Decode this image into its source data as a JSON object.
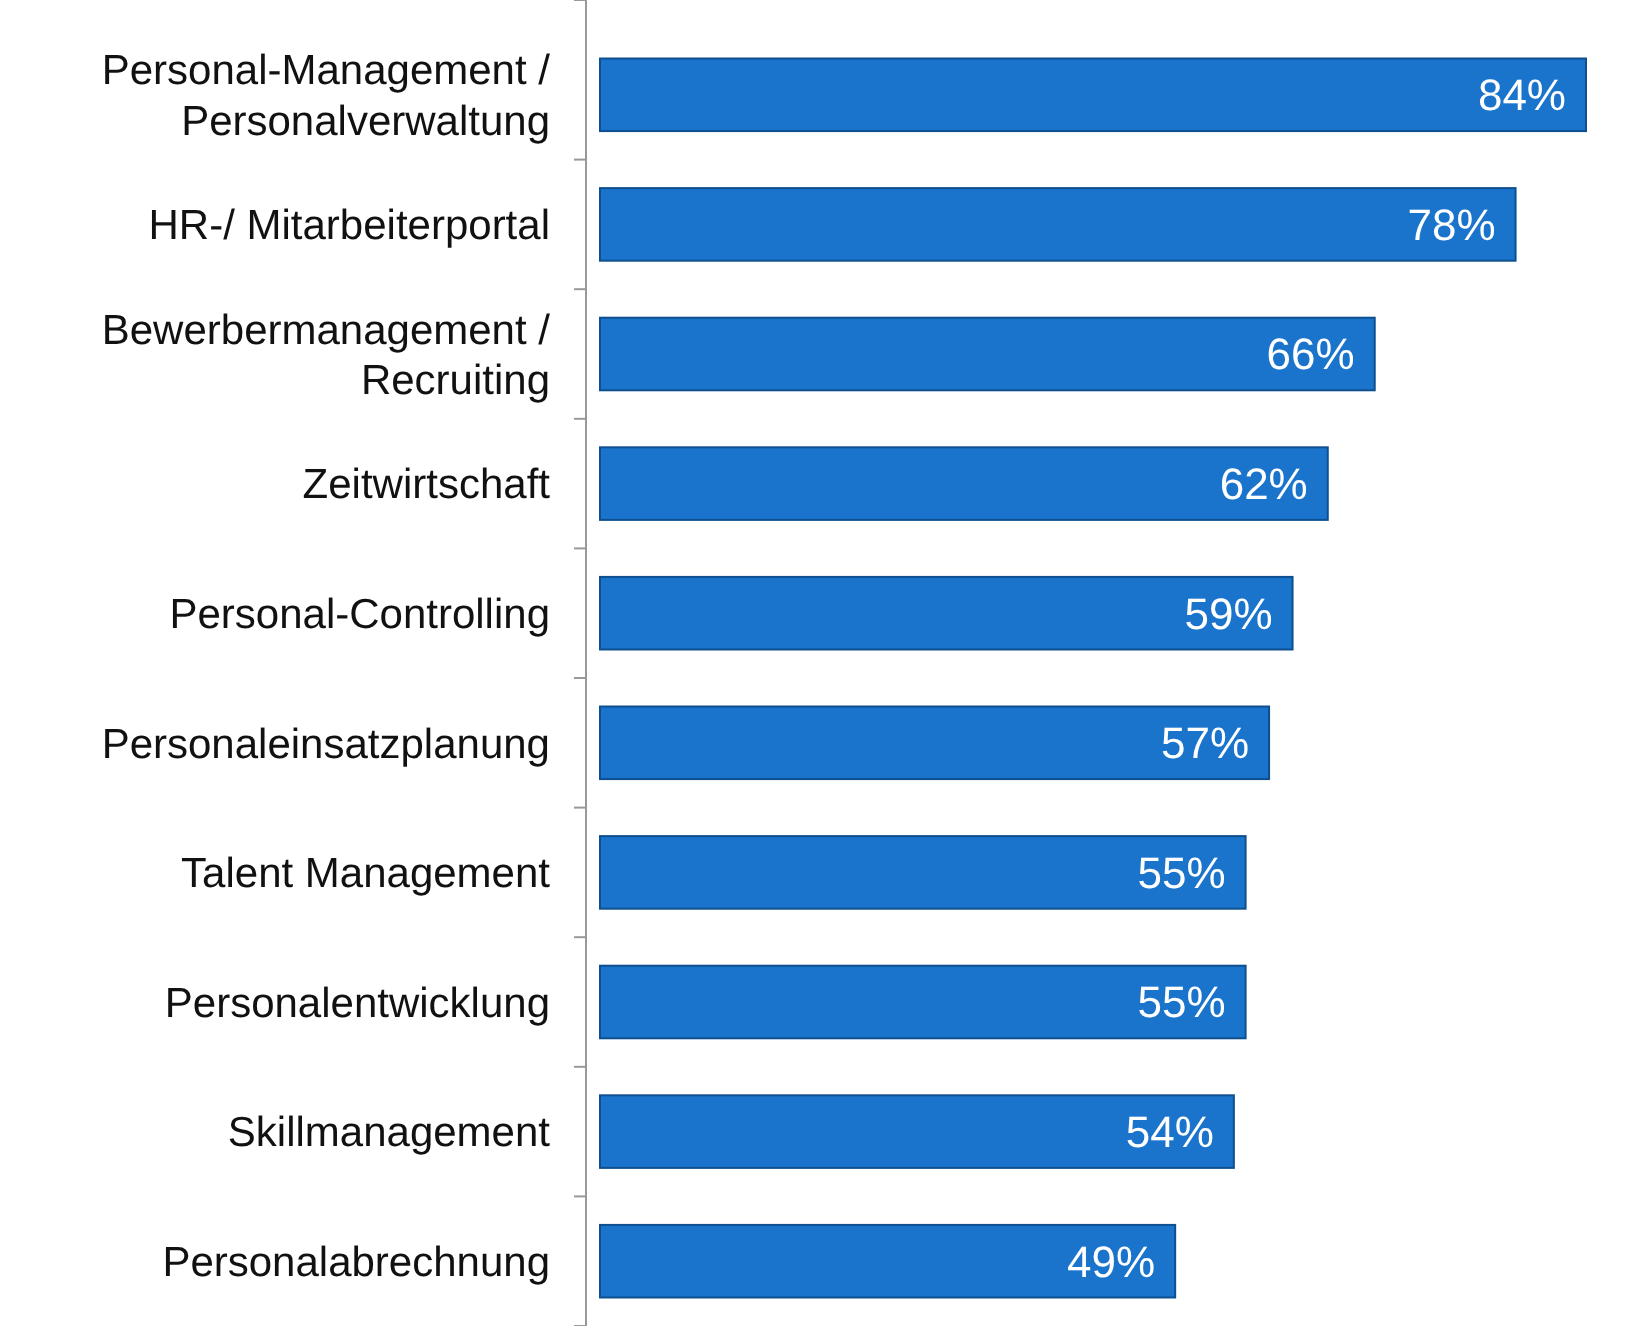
{
  "chart_data": {
    "type": "bar",
    "orientation": "horizontal",
    "categories": [
      "Personal-Management /\nPersonalverwaltung",
      "HR-/ Mitarbeiterportal",
      "Bewerbermanagement /\nRecruiting",
      "Zeitwirtschaft",
      "Personal-Controlling",
      "Personaleinsatzplanung",
      "Talent Management",
      "Personalentwicklung",
      "Skillmanagement",
      "Personalabrechnung"
    ],
    "values": [
      84,
      78,
      66,
      62,
      59,
      57,
      55,
      55,
      54,
      49
    ],
    "value_labels": [
      "84%",
      "78%",
      "66%",
      "62%",
      "59%",
      "57%",
      "55%",
      "55%",
      "54%",
      "49%"
    ],
    "color": "#1b74cc"
  }
}
